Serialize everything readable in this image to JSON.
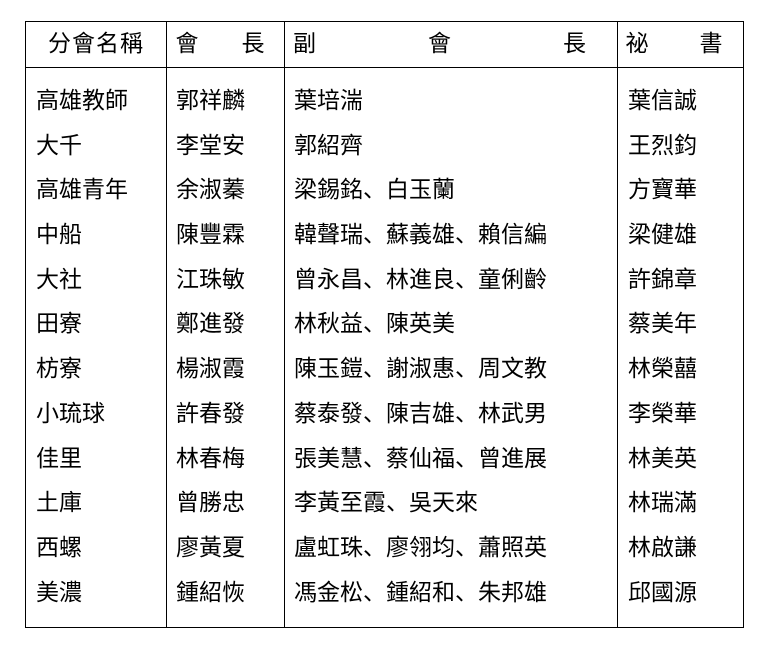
{
  "headers": {
    "branch": "分會名稱",
    "president": "會　長",
    "vice_president": "副　　會　　長",
    "secretary": "祕　書"
  },
  "rows": [
    {
      "branch": "高雄教師",
      "president": "郭祥麟",
      "vice_president": "葉培湍",
      "secretary": "葉信誠"
    },
    {
      "branch": "大千",
      "president": "李堂安",
      "vice_president": "郭紹齊",
      "secretary": "王烈鈞"
    },
    {
      "branch": "高雄青年",
      "president": "余淑蓁",
      "vice_president": "梁錫銘、白玉蘭",
      "secretary": "方寶華"
    },
    {
      "branch": "中船",
      "president": "陳豐霖",
      "vice_president": "韓聲瑞、蘇義雄、賴信編",
      "secretary": "梁健雄"
    },
    {
      "branch": "大社",
      "president": "江珠敏",
      "vice_president": "曾永昌、林進良、童俐齡",
      "secretary": "許錦章"
    },
    {
      "branch": "田寮",
      "president": "鄭進發",
      "vice_president": "林秋益、陳英美",
      "secretary": "蔡美年"
    },
    {
      "branch": "枋寮",
      "president": "楊淑霞",
      "vice_president": "陳玉鎧、謝淑惠、周文教",
      "secretary": "林榮囍"
    },
    {
      "branch": "小琉球",
      "president": "許春發",
      "vice_president": "蔡泰發、陳吉雄、林武男",
      "secretary": "李榮華"
    },
    {
      "branch": "佳里",
      "president": "林春梅",
      "vice_president": "張美慧、蔡仙福、曾進展",
      "secretary": "林美英"
    },
    {
      "branch": "土庫",
      "president": "曾勝忠",
      "vice_president": "李黃至霞、吳天來",
      "secretary": "林瑞滿"
    },
    {
      "branch": "西螺",
      "president": "廖黃夏",
      "vice_president": "盧虹珠、廖翎均、蕭照英",
      "secretary": "林啟謙"
    },
    {
      "branch": "美濃",
      "president": "鍾紹恢",
      "vice_president": "馮金松、鍾紹和、朱邦雄",
      "secretary": "邱國源"
    }
  ]
}
